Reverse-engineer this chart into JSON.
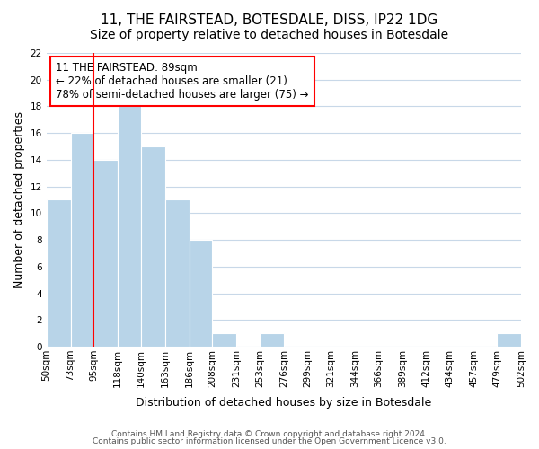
{
  "title": "11, THE FAIRSTEAD, BOTESDALE, DISS, IP22 1DG",
  "subtitle": "Size of property relative to detached houses in Botesdale",
  "xlabel": "Distribution of detached houses by size in Botesdale",
  "ylabel": "Number of detached properties",
  "bar_color": "#b8d4e8",
  "bar_edge_color": "#b8d4e8",
  "bin_edges": [
    50,
    73,
    95,
    118,
    140,
    163,
    186,
    208,
    231,
    253,
    276,
    299,
    321,
    344,
    366,
    389,
    412,
    434,
    457,
    479,
    502
  ],
  "bin_labels": [
    "50sqm",
    "73sqm",
    "95sqm",
    "118sqm",
    "140sqm",
    "163sqm",
    "186sqm",
    "208sqm",
    "231sqm",
    "253sqm",
    "276sqm",
    "299sqm",
    "321sqm",
    "344sqm",
    "366sqm",
    "389sqm",
    "412sqm",
    "434sqm",
    "457sqm",
    "479sqm",
    "502sqm"
  ],
  "bar_values": [
    11,
    16,
    14,
    18,
    15,
    11,
    8,
    1,
    0,
    1,
    0,
    0,
    0,
    0,
    0,
    0,
    0,
    0,
    0,
    1
  ],
  "n_bars": 20,
  "ylim": [
    0,
    22
  ],
  "yticks": [
    0,
    2,
    4,
    6,
    8,
    10,
    12,
    14,
    16,
    18,
    20,
    22
  ],
  "red_line_bin_index": 2,
  "annotation_title": "11 THE FAIRSTEAD: 89sqm",
  "annotation_line1": "← 22% of detached houses are smaller (21)",
  "annotation_line2": "78% of semi-detached houses are larger (75) →",
  "footer_line1": "Contains HM Land Registry data © Crown copyright and database right 2024.",
  "footer_line2": "Contains public sector information licensed under the Open Government Licence v3.0.",
  "background_color": "#ffffff",
  "grid_color": "#c8d8e8",
  "title_fontsize": 11,
  "subtitle_fontsize": 10,
  "axis_label_fontsize": 9,
  "tick_fontsize": 7.5,
  "annotation_fontsize": 8.5,
  "footer_fontsize": 6.5
}
